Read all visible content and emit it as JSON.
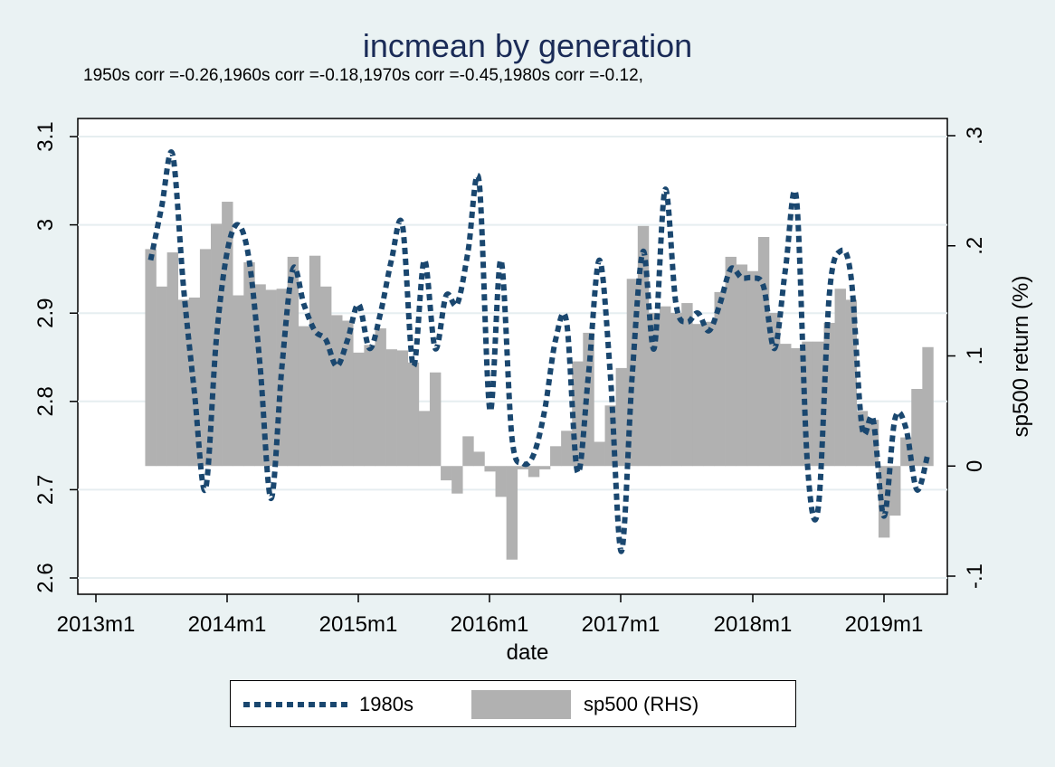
{
  "title": "incmean by generation",
  "subtitle": "1950s corr =-0.26,1960s corr =-0.18,1970s corr =-0.45,1980s corr =-0.12,",
  "chart_data": {
    "type": "line+bar",
    "title": "incmean by generation",
    "subtitle": "1950s corr =-0.26,1960s corr =-0.18,1970s corr =-0.45,1980s corr =-0.12,",
    "xlabel": "date",
    "ylabel_left": "",
    "ylabel_right": "sp500 return (%)",
    "x_ticks": [
      "2013m1",
      "2014m1",
      "2015m1",
      "2016m1",
      "2017m1",
      "2018m1",
      "2019m1"
    ],
    "y_left_ticks": [
      "2.6",
      "2.7",
      "2.8",
      "2.9",
      "3",
      "3.1"
    ],
    "y_right_ticks": [
      "-.1",
      "0",
      ".1",
      ".2",
      ".3"
    ],
    "ylim_left": [
      2.6,
      3.1
    ],
    "ylim_right": [
      -0.1,
      0.3
    ],
    "x": [
      "2013m6",
      "2013m7",
      "2013m8",
      "2013m9",
      "2013m10",
      "2013m11",
      "2013m12",
      "2014m1",
      "2014m2",
      "2014m3",
      "2014m4",
      "2014m5",
      "2014m6",
      "2014m7",
      "2014m8",
      "2014m9",
      "2014m10",
      "2014m11",
      "2014m12",
      "2015m1",
      "2015m2",
      "2015m3",
      "2015m4",
      "2015m5",
      "2015m6",
      "2015m7",
      "2015m8",
      "2015m9",
      "2015m10",
      "2015m11",
      "2015m12",
      "2016m1",
      "2016m2",
      "2016m3",
      "2016m4",
      "2016m5",
      "2016m6",
      "2016m7",
      "2016m8",
      "2016m9",
      "2016m10",
      "2016m11",
      "2016m12",
      "2017m1",
      "2017m2",
      "2017m3",
      "2017m4",
      "2017m5",
      "2017m6",
      "2017m7",
      "2017m8",
      "2017m9",
      "2017m10",
      "2017m11",
      "2017m12",
      "2018m1",
      "2018m2",
      "2018m3",
      "2018m4",
      "2018m5",
      "2018m6",
      "2018m7",
      "2018m8",
      "2018m9",
      "2018m10",
      "2018m11",
      "2018m12",
      "2019m1",
      "2019m2",
      "2019m3",
      "2019m4",
      "2019m5"
    ],
    "series": [
      {
        "name": "1980s",
        "axis": "left",
        "style": "dotted line",
        "color": "#1a476f",
        "values": [
          2.96,
          3.02,
          3.08,
          2.93,
          2.81,
          2.7,
          2.87,
          2.97,
          3.0,
          2.96,
          2.84,
          2.69,
          2.84,
          2.95,
          2.91,
          2.88,
          2.87,
          2.84,
          2.87,
          2.91,
          2.86,
          2.9,
          2.96,
          3.0,
          2.84,
          2.96,
          2.86,
          2.92,
          2.91,
          2.97,
          3.05,
          2.79,
          2.96,
          2.76,
          2.73,
          2.74,
          2.79,
          2.87,
          2.89,
          2.72,
          2.83,
          2.96,
          2.83,
          2.63,
          2.83,
          2.97,
          2.86,
          3.04,
          2.91,
          2.89,
          2.9,
          2.88,
          2.91,
          2.95,
          2.94,
          2.94,
          2.93,
          2.86,
          2.95,
          3.03,
          2.73,
          2.68,
          2.92,
          2.97,
          2.94,
          2.77,
          2.78,
          2.67,
          2.78,
          2.77,
          2.7,
          2.74
        ]
      },
      {
        "name": "sp500 (RHS)",
        "axis": "right",
        "style": "bar",
        "color": "#b1b1b1",
        "values": [
          0.197,
          0.163,
          0.194,
          0.151,
          0.153,
          0.197,
          0.22,
          0.24,
          0.155,
          0.185,
          0.165,
          0.16,
          0.161,
          0.19,
          0.127,
          0.191,
          0.163,
          0.137,
          0.132,
          0.103,
          0.11,
          0.125,
          0.106,
          0.105,
          0.094,
          0.05,
          0.085,
          -0.013,
          -0.025,
          0.027,
          0.013,
          -0.005,
          -0.028,
          -0.085,
          -0.003,
          -0.01,
          -0.003,
          0.018,
          0.032,
          0.095,
          0.121,
          0.022,
          0.055,
          0.089,
          0.17,
          0.218,
          0.139,
          0.145,
          0.139,
          0.148,
          0.129,
          0.131,
          0.158,
          0.19,
          0.183,
          0.177,
          0.208,
          0.139,
          0.111,
          0.107,
          0.113,
          0.113,
          0.13,
          0.161,
          0.151,
          0.05,
          0.042,
          -0.065,
          -0.045,
          0.026,
          0.07,
          0.108
        ]
      }
    ],
    "legend": {
      "position": "bottom",
      "items": [
        {
          "label": "1980s"
        },
        {
          "label": "sp500 (RHS)"
        }
      ]
    },
    "grid": true
  }
}
